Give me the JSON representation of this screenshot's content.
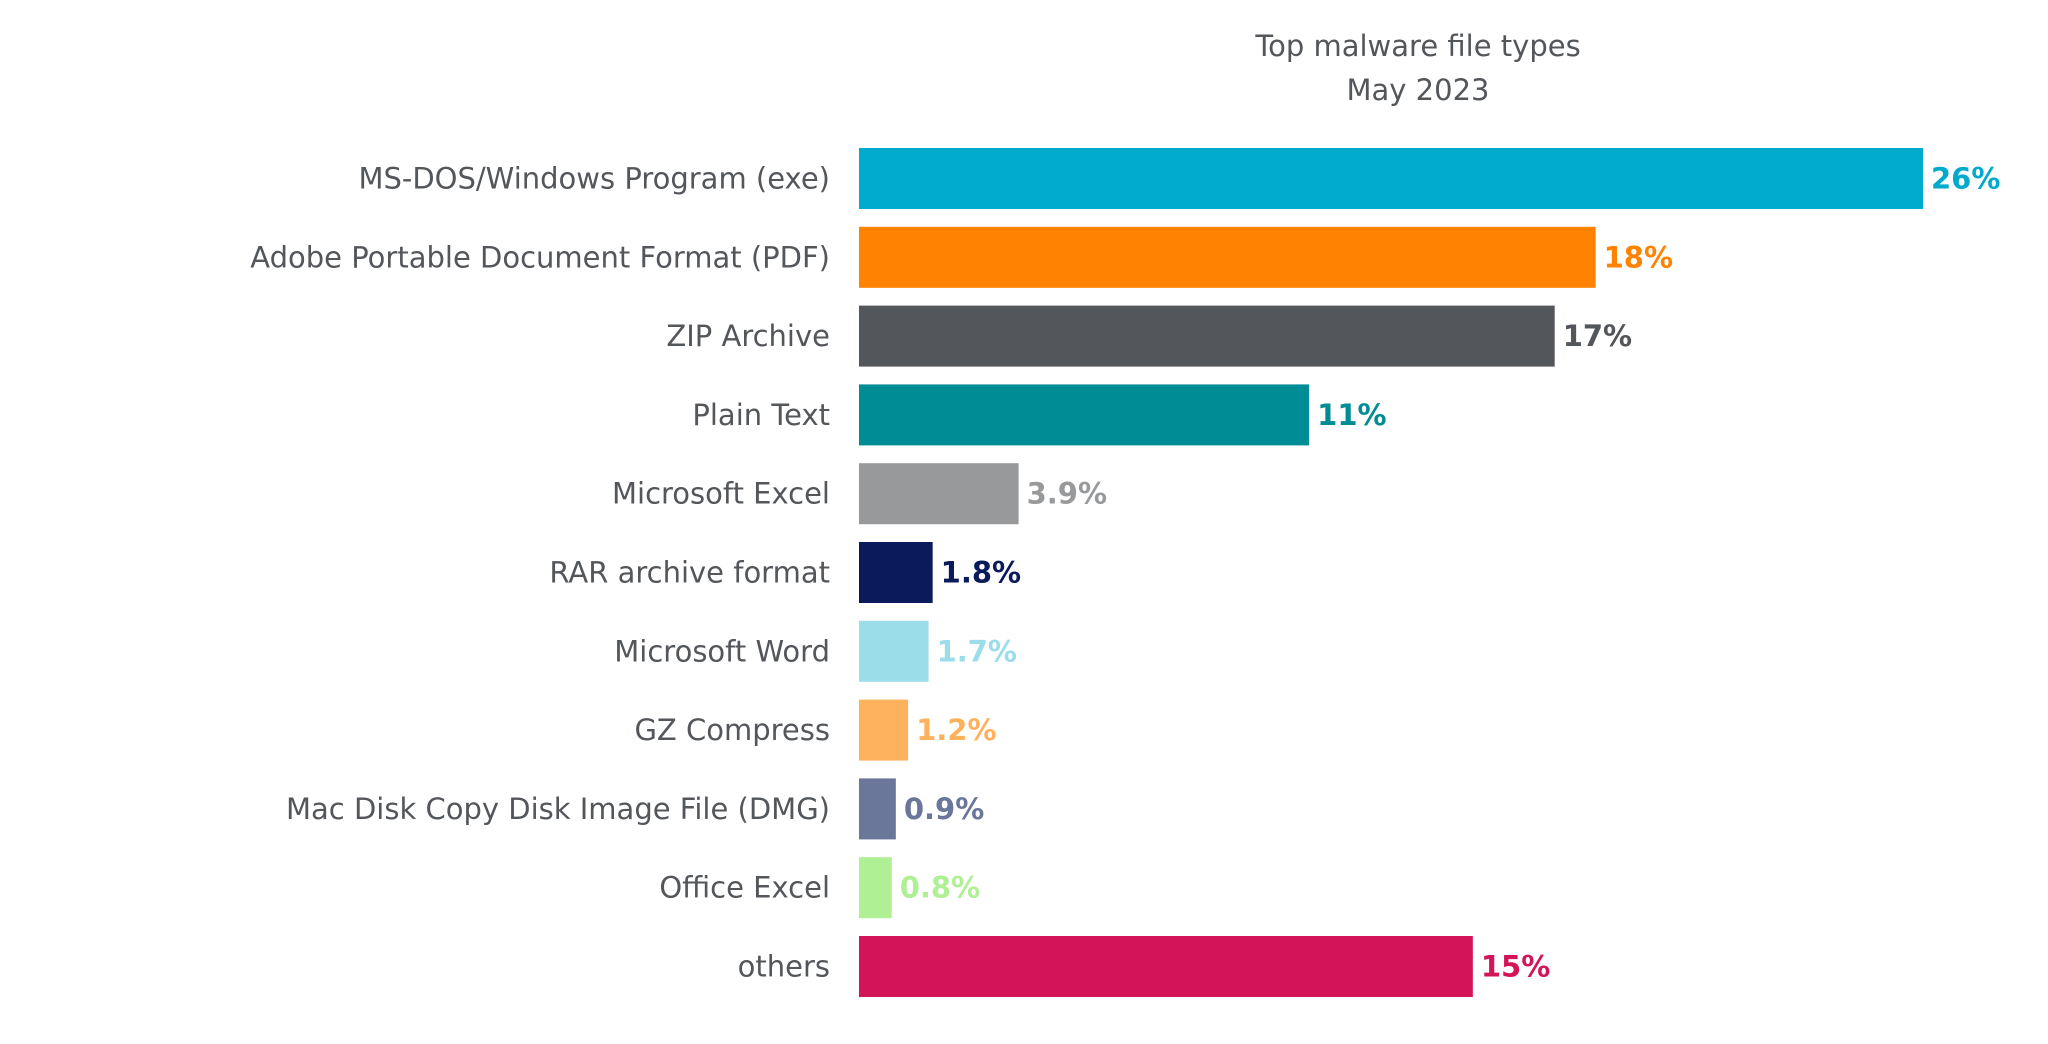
{
  "chart_data": {
    "type": "bar",
    "orientation": "horizontal",
    "title": "Top malware file types",
    "subtitle": "May 2023",
    "categories": [
      "MS-DOS/Windows Program (exe)",
      "Adobe Portable Document Format (PDF)",
      "ZIP Archive",
      "Plain Text",
      "Microsoft Excel",
      "RAR archive format",
      "Microsoft Word",
      "GZ Compress",
      "Mac Disk Copy Disk Image File (DMG)",
      "Office Excel",
      "others"
    ],
    "values": [
      26,
      18,
      17,
      11,
      3.9,
      1.8,
      1.7,
      1.2,
      0.9,
      0.8,
      15
    ],
    "value_labels": [
      "26%",
      "18%",
      "17%",
      "11%",
      "3.9%",
      "1.8%",
      "1.7%",
      "1.2%",
      "0.9%",
      "0.8%",
      "15%"
    ],
    "colors": [
      "#00aacd",
      "#ff8200",
      "#53565a",
      "#008c95",
      "#98999b",
      "#0b1a5b",
      "#9bdde9",
      "#ffb25e",
      "#6a769a",
      "#aff094",
      "#d31459"
    ],
    "text_color": "#53565a",
    "xlim": [
      0,
      26
    ],
    "xlabel": "",
    "ylabel": "",
    "grid": false,
    "axes_visible": false
  }
}
